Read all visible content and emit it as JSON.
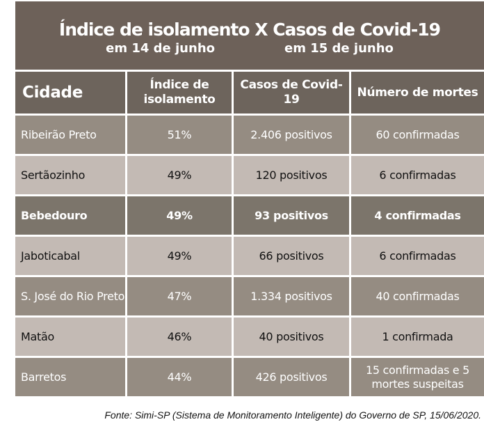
{
  "title": {
    "line1": "Índice de isolamento X Casos de Covid-19",
    "date_left": "em 14 de junho",
    "date_right": "em 15 de junho"
  },
  "headers": [
    "Cidade",
    "Índice de isolamento",
    "Casos de Covid-19",
    "Número de mortes"
  ],
  "rows": [
    {
      "style": "dark",
      "cells": [
        "Ribeirão Preto",
        "51%",
        "2.406 positivos",
        "60 confirmadas"
      ]
    },
    {
      "style": "light",
      "cells": [
        "Sertãozinho",
        "49%",
        "120 positivos",
        "6 confirmadas"
      ]
    },
    {
      "style": "bold",
      "cells": [
        "Bebedouro",
        "49%",
        "93 positivos",
        "4 confirmadas"
      ]
    },
    {
      "style": "light",
      "cells": [
        "Jaboticabal",
        "49%",
        "66 positivos",
        "6 confirmadas"
      ]
    },
    {
      "style": "dark",
      "cells": [
        "S. José do Rio Preto",
        "47%",
        "1.334 positivos",
        "40 confirmadas"
      ]
    },
    {
      "style": "light",
      "cells": [
        "Matão",
        "46%",
        "40 positivos",
        "1 confirmada"
      ]
    },
    {
      "style": "dark",
      "cells": [
        "Barretos",
        "44%",
        "426 positivos",
        "15 confirmadas e 5 mortes suspeitas"
      ]
    }
  ],
  "source": "Fonte: Simi-SP (Sistema de Monitoramento Inteligente) do Governo de SP, 15/06/2020.",
  "colors": {
    "title_bg": "#6d6159",
    "header_bg": "#6d645c",
    "row_dark": "#958c82",
    "row_light": "#c3bab4",
    "row_highlight": "#7c756b"
  }
}
